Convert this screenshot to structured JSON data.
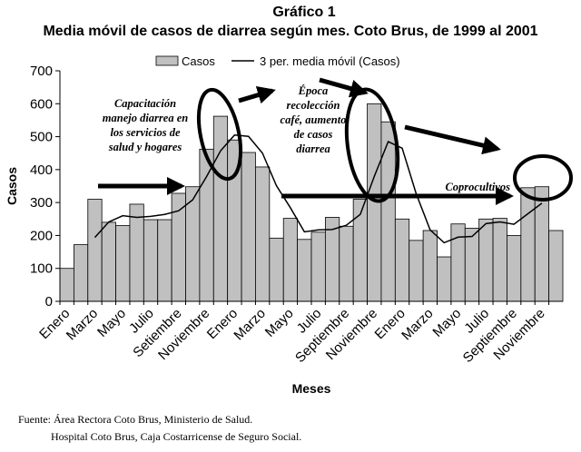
{
  "chart_data": {
    "type": "bar_line",
    "title": "Gráfico 1",
    "subtitle": "Media móvil de casos de diarrea según mes. Coto Brus, de 1999 al 2001",
    "y_label": "Casos",
    "x_label": "Meses",
    "categories": [
      "Enero",
      null,
      "Marzo",
      null,
      "Mayo",
      null,
      "Julio",
      null,
      "Setiembre",
      null,
      "Noviembre",
      null,
      "Enero",
      null,
      "Marzo",
      null,
      "Mayo",
      null,
      "Julio",
      null,
      "Septiembre",
      null,
      "Noviembre",
      null,
      "Enero",
      null,
      "Marzo",
      null,
      "Mayo",
      null,
      "Julio",
      null,
      "Septiembre",
      null,
      "Noviembre",
      null
    ],
    "series": [
      {
        "name": "Casos",
        "kind": "bar",
        "color": "#c0c0c0",
        "values": [
          100,
          172,
          310,
          240,
          230,
          295,
          248,
          248,
          328,
          348,
          462,
          562,
          490,
          452,
          408,
          192,
          252,
          188,
          210,
          255,
          228,
          310,
          600,
          545,
          250,
          185,
          215,
          135,
          235,
          222,
          250,
          252,
          200,
          345,
          348,
          215
        ]
      },
      {
        "name": "3 per. media móvil (Casos)",
        "kind": "line",
        "color": "#000000",
        "values": [
          null,
          null,
          194,
          241,
          260,
          255,
          258,
          264,
          275,
          308,
          379,
          457,
          505,
          501,
          450,
          351,
          284,
          211,
          217,
          218,
          231,
          264,
          379,
          485,
          465,
          327,
          217,
          178,
          195,
          197,
          236,
          241,
          234,
          266,
          298,
          null
        ]
      }
    ],
    "ylim": [
      0,
      700
    ],
    "yticks": [
      0,
      100,
      200,
      300,
      400,
      500,
      600,
      700
    ],
    "annotations": [
      [
        "Capacitación",
        "manejo diarrea en",
        "los servicios de",
        "salud  y hogares"
      ],
      [
        "Época",
        "recolección",
        "café, aumento",
        "de  casos",
        "diarrea"
      ],
      [
        "Coprocultivos"
      ]
    ],
    "source": [
      "Fuente: Área Rectora Coto Brus, Ministerio de Salud.",
      "Hospital Coto Brus, Caja Costarricense de Seguro Social."
    ]
  }
}
